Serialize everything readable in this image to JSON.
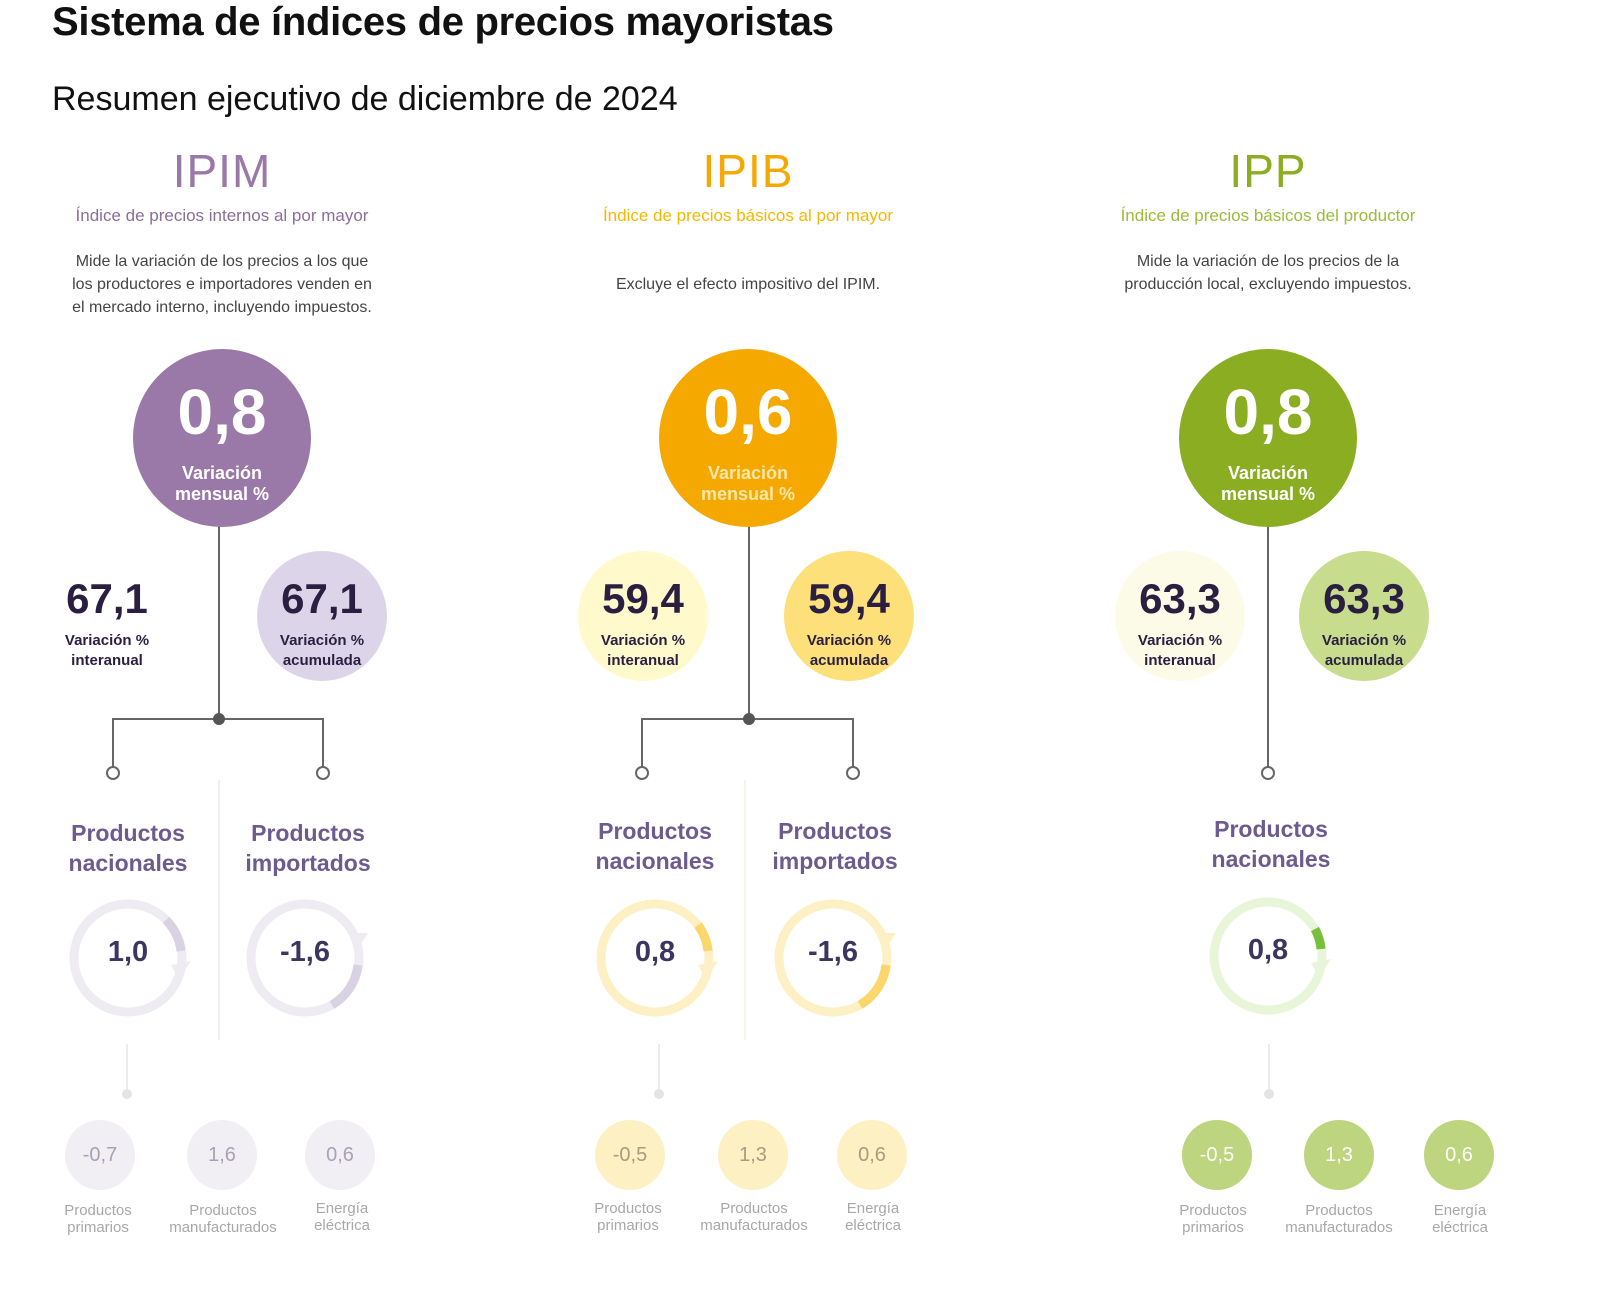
{
  "header": {
    "title": "Sistema de índices de precios mayoristas",
    "subtitle": "Resumen ejecutivo de diciembre de 2024"
  },
  "colors": {
    "ipim": "#9a78a7",
    "ipib": "#f5a800",
    "ipp": "#8aad22"
  },
  "ipim": {
    "acronym": "IPIM",
    "fullname": "Índice de precios internos al por mayor",
    "description_lines": [
      "Mide la variación de los precios a los que",
      "los productores e importadores venden en",
      "el mercado interno, incluyendo impuestos."
    ],
    "monthly": {
      "value": "0,8",
      "label_1": "Variación",
      "label_2": "mensual %"
    },
    "interanual": {
      "value": "67,1",
      "label_1": "Variación %",
      "label_2": "interanual"
    },
    "acumulada": {
      "value": "67,1",
      "label_1": "Variación %",
      "label_2": "acumulada"
    },
    "groups": [
      {
        "line_1": "Productos",
        "line_2": "nacionales",
        "value": "1,0"
      },
      {
        "line_1": "Productos",
        "line_2": "importados",
        "value": "-1,6"
      }
    ],
    "breakdown": [
      {
        "value": "-0,7",
        "line_1": "Productos",
        "line_2": "primarios"
      },
      {
        "value": "1,6",
        "line_1": "Productos",
        "line_2": "manufacturados"
      },
      {
        "value": "0,6",
        "line_1": "Energía",
        "line_2": "eléctrica"
      }
    ]
  },
  "ipib": {
    "acronym": "IPIB",
    "fullname": "Índice de precios básicos al por mayor",
    "description_lines": [
      "Excluye el efecto impositivo del IPIM."
    ],
    "monthly": {
      "value": "0,6",
      "label_1": "Variación",
      "label_2": "mensual %"
    },
    "interanual": {
      "value": "59,4",
      "label_1": "Variación %",
      "label_2": "interanual"
    },
    "acumulada": {
      "value": "59,4",
      "label_1": "Variación %",
      "label_2": "acumulada"
    },
    "groups": [
      {
        "line_1": "Productos",
        "line_2": "nacionales",
        "value": "0,8"
      },
      {
        "line_1": "Productos",
        "line_2": "importados",
        "value": "-1,6"
      }
    ],
    "breakdown": [
      {
        "value": "-0,5",
        "line_1": "Productos",
        "line_2": "primarios"
      },
      {
        "value": "1,3",
        "line_1": "Productos",
        "line_2": "manufacturados"
      },
      {
        "value": "0,6",
        "line_1": "Energía",
        "line_2": "eléctrica"
      }
    ]
  },
  "ipp": {
    "acronym": "IPP",
    "fullname": "Índice de precios básicos del productor",
    "description_lines": [
      "Mide la variación de los precios de la",
      "producción local, excluyendo impuestos."
    ],
    "monthly": {
      "value": "0,8",
      "label_1": "Variación",
      "label_2": "mensual %"
    },
    "interanual": {
      "value": "63,3",
      "label_1": "Variación %",
      "label_2": "interanual"
    },
    "acumulada": {
      "value": "63,3",
      "label_1": "Variación %",
      "label_2": "acumulada"
    },
    "groups": [
      {
        "line_1": "Productos",
        "line_2": "nacionales",
        "value": "0,8"
      }
    ],
    "breakdown": [
      {
        "value": "-0,5",
        "line_1": "Productos",
        "line_2": "primarios"
      },
      {
        "value": "1,3",
        "line_1": "Productos",
        "line_2": "manufacturados"
      },
      {
        "value": "0,6",
        "line_1": "Energía",
        "line_2": "eléctrica"
      }
    ]
  }
}
